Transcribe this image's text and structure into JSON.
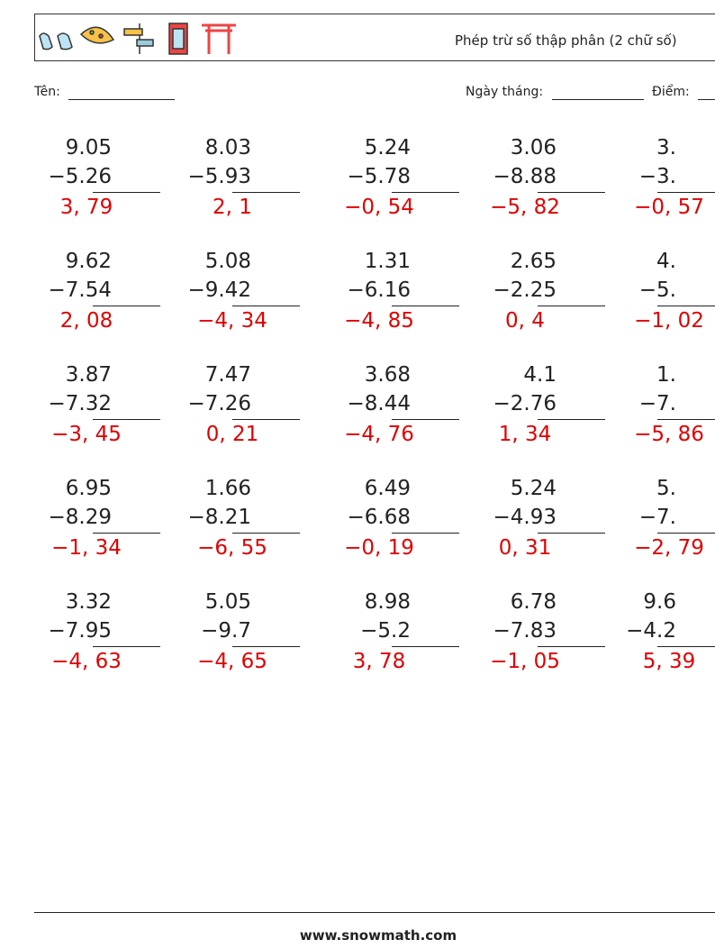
{
  "header": {
    "title": "Phép trừ số thập phân (2 chữ số)"
  },
  "fields": {
    "name": "Tên:",
    "date": "Ngày tháng:",
    "score": "Điểm:"
  },
  "problems": [
    [
      {
        "a": "9.05",
        "b": "−5.26",
        "answer": "3, 79"
      },
      {
        "a": "8.03",
        "b": "−5.93",
        "answer": "2, 1"
      },
      {
        "a": "5.24",
        "b": "−5.78",
        "answer": "−0, 54"
      },
      {
        "a": "3.06",
        "b": "−8.88",
        "answer": "−5, 82"
      },
      {
        "a": "3.",
        "b": "−3.",
        "answer": "−0, 57"
      }
    ],
    [
      {
        "a": "9.62",
        "b": "−7.54",
        "answer": "2, 08"
      },
      {
        "a": "5.08",
        "b": "−9.42",
        "answer": "−4, 34"
      },
      {
        "a": "1.31",
        "b": "−6.16",
        "answer": "−4, 85"
      },
      {
        "a": "2.65",
        "b": "−2.25",
        "answer": "0, 4"
      },
      {
        "a": "4.",
        "b": "−5.",
        "answer": "−1, 02"
      }
    ],
    [
      {
        "a": "3.87",
        "b": "−7.32",
        "answer": "−3, 45"
      },
      {
        "a": "7.47",
        "b": "−7.26",
        "answer": "0, 21"
      },
      {
        "a": "3.68",
        "b": "−8.44",
        "answer": "−4, 76"
      },
      {
        "a": "4.1",
        "b": "−2.76",
        "answer": "1, 34"
      },
      {
        "a": "1.",
        "b": "−7.",
        "answer": "−5, 86"
      }
    ],
    [
      {
        "a": "6.95",
        "b": "−8.29",
        "answer": "−1, 34"
      },
      {
        "a": "1.66",
        "b": "−8.21",
        "answer": "−6, 55"
      },
      {
        "a": "6.49",
        "b": "−6.68",
        "answer": "−0, 19"
      },
      {
        "a": "5.24",
        "b": "−4.93",
        "answer": "0, 31"
      },
      {
        "a": "5.",
        "b": "−7.",
        "answer": "−2, 79"
      }
    ],
    [
      {
        "a": "3.32",
        "b": "−7.95",
        "answer": "−4, 63"
      },
      {
        "a": "5.05",
        "b": "−9.7",
        "answer": "−4, 65"
      },
      {
        "a": "8.98",
        "b": "−5.2",
        "answer": "3, 78"
      },
      {
        "a": "6.78",
        "b": "−7.83",
        "answer": "−1, 05"
      },
      {
        "a": "9.6",
        "b": "−4.2",
        "answer": "5, 39"
      }
    ]
  ],
  "footer": {
    "url": "www.snowmath.com"
  }
}
